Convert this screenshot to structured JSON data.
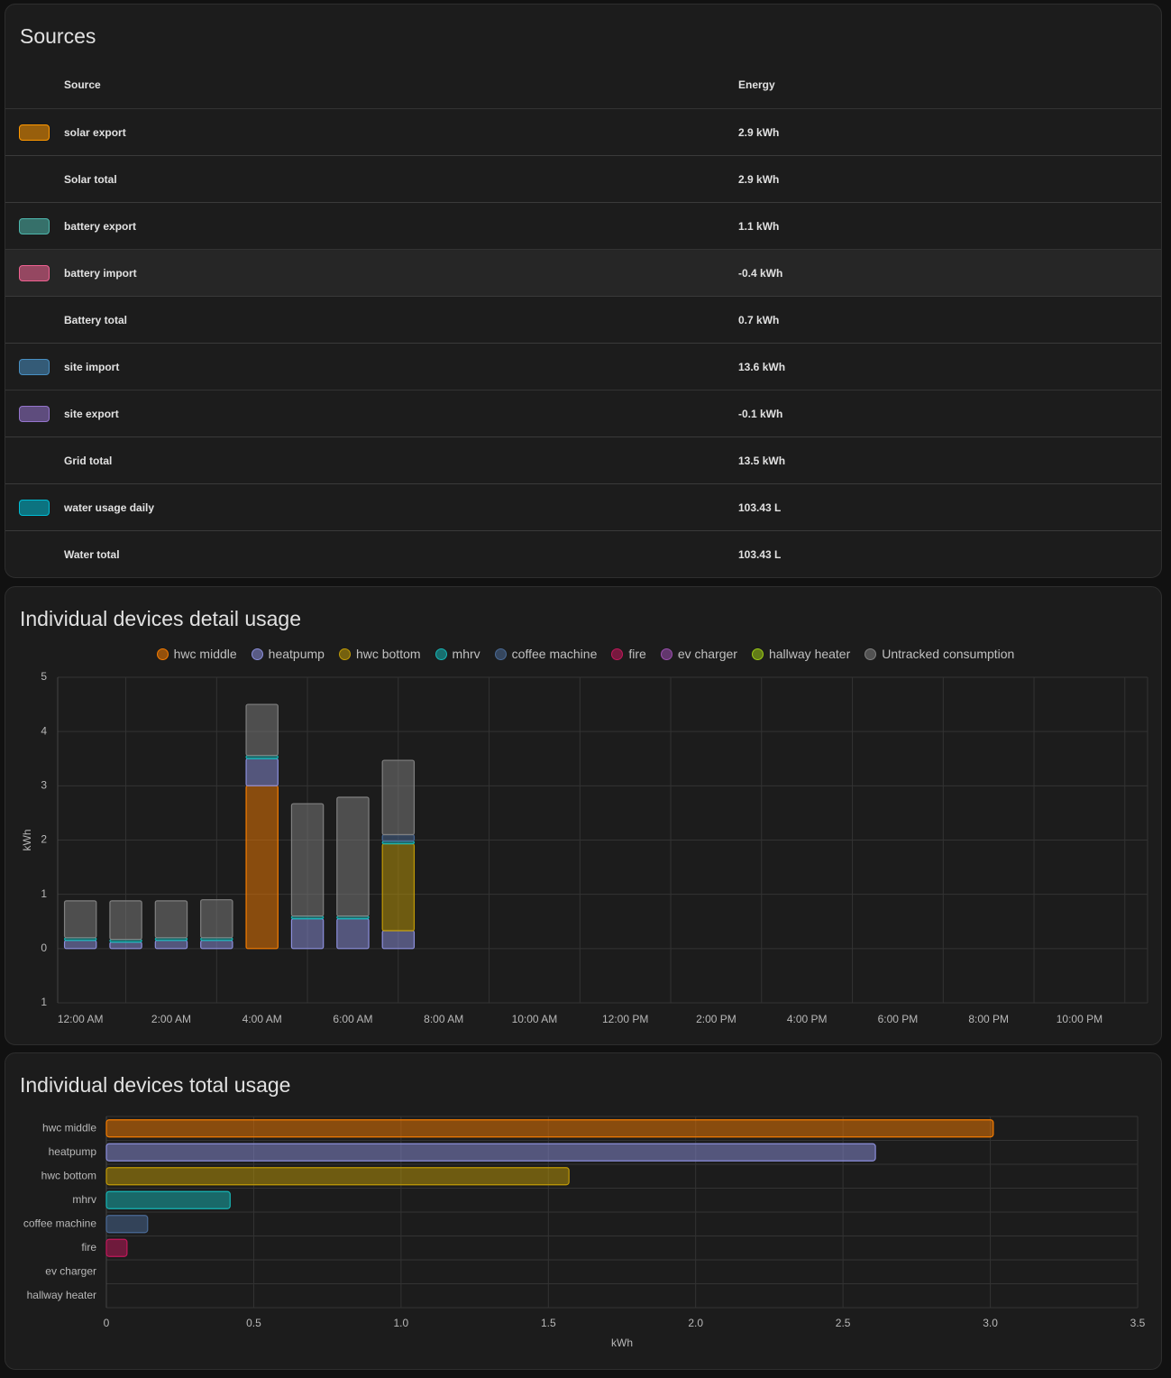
{
  "sources": {
    "title": "Sources",
    "columns": [
      "Source",
      "Energy"
    ],
    "rows": [
      {
        "source": "solar export",
        "energy": "2.9 kWh",
        "color": "#ff9800"
      },
      {
        "source": "Solar total",
        "energy": "2.9 kWh",
        "total": true
      },
      {
        "source": "battery export",
        "energy": "1.1 kWh",
        "color": "#4db6ac"
      },
      {
        "source": "battery import",
        "energy": "-0.4 kWh",
        "color": "#f06292",
        "highlighted": true
      },
      {
        "source": "Battery total",
        "energy": "0.7 kWh",
        "total": true
      },
      {
        "source": "site import",
        "energy": "13.6 kWh",
        "color": "#488fc2"
      },
      {
        "source": "site export",
        "energy": "-0.1 kWh",
        "color": "#9575cd"
      },
      {
        "source": "Grid total",
        "energy": "13.5 kWh",
        "total": true
      },
      {
        "source": "water usage daily",
        "energy": "103.43 L",
        "color": "#00bcd4"
      },
      {
        "source": "Water total",
        "energy": "103.43 L",
        "total": true
      }
    ]
  },
  "chart_data": [
    {
      "type": "bar",
      "stacked": true,
      "title": "Individual devices detail usage",
      "ylabel": "kWh",
      "categories": [
        "12:00 AM",
        null,
        "2:00 AM",
        null,
        "4:00 AM",
        null,
        "6:00 AM",
        null,
        "8:00 AM",
        null,
        "10:00 AM",
        null,
        "12:00 PM",
        null,
        "2:00 PM",
        null,
        "4:00 PM",
        null,
        "6:00 PM",
        null,
        "8:00 PM",
        null,
        "10:00 PM",
        null
      ],
      "series": [
        {
          "name": "hwc middle",
          "color": "#f57c00",
          "values": [
            null,
            null,
            null,
            null,
            3.0,
            null,
            null,
            null,
            null,
            null,
            null,
            null,
            null,
            null,
            null,
            null,
            null,
            null,
            null,
            null,
            null,
            null,
            null,
            null
          ]
        },
        {
          "name": "heatpump",
          "color": "#8c8fdc",
          "values": [
            0.15,
            0.12,
            0.15,
            0.15,
            0.5,
            0.55,
            0.55,
            0.33,
            null,
            null,
            null,
            null,
            null,
            null,
            null,
            null,
            null,
            null,
            null,
            null,
            null,
            null,
            null,
            null
          ]
        },
        {
          "name": "hwc bottom",
          "color": "#c09a06",
          "values": [
            null,
            null,
            null,
            null,
            null,
            null,
            null,
            1.6,
            null,
            null,
            null,
            null,
            null,
            null,
            null,
            null,
            null,
            null,
            null,
            null,
            null,
            null,
            null,
            null
          ]
        },
        {
          "name": "mhrv",
          "color": "#16b5b5",
          "values": [
            0.05,
            0.05,
            0.05,
            0.05,
            0.06,
            0.05,
            0.05,
            0.05,
            null,
            null,
            null,
            null,
            null,
            null,
            null,
            null,
            null,
            null,
            null,
            null,
            null,
            null,
            null,
            null
          ]
        },
        {
          "name": "coffee machine",
          "color": "#4a6a96",
          "values": [
            null,
            null,
            null,
            null,
            null,
            null,
            null,
            0.12,
            null,
            null,
            null,
            null,
            null,
            null,
            null,
            null,
            null,
            null,
            null,
            null,
            null,
            null,
            null,
            null
          ]
        },
        {
          "name": "fire",
          "color": "#c2185b",
          "values": [
            null,
            null,
            null,
            null,
            null,
            null,
            null,
            null,
            null,
            null,
            null,
            null,
            null,
            null,
            null,
            null,
            null,
            null,
            null,
            null,
            null,
            null,
            null,
            null
          ]
        },
        {
          "name": "ev charger",
          "color": "#9c4fb0",
          "values": [
            null,
            null,
            null,
            null,
            null,
            null,
            null,
            null,
            null,
            null,
            null,
            null,
            null,
            null,
            null,
            null,
            null,
            null,
            null,
            null,
            null,
            null,
            null,
            null
          ]
        },
        {
          "name": "hallway heater",
          "color": "#9ccc15",
          "values": [
            null,
            null,
            null,
            null,
            null,
            null,
            null,
            null,
            null,
            null,
            null,
            null,
            null,
            null,
            null,
            null,
            null,
            null,
            null,
            null,
            null,
            null,
            null,
            null
          ]
        },
        {
          "name": "Untracked consumption",
          "color": "#808080",
          "values": [
            0.68,
            0.71,
            0.68,
            0.7,
            0.94,
            2.07,
            2.19,
            1.37,
            null,
            null,
            null,
            null,
            null,
            null,
            null,
            null,
            null,
            null,
            null,
            null,
            null,
            null,
            null,
            null
          ]
        }
      ],
      "ylim": [
        -1,
        5
      ],
      "yticks": [
        {
          "value": -1,
          "label": "1"
        },
        0,
        1,
        2,
        3,
        4,
        5
      ],
      "grid": true,
      "legend": "top"
    },
    {
      "type": "bar",
      "orientation": "horizontal",
      "title": "Individual devices total usage",
      "xlabel": "kWh",
      "categories": [
        "hwc middle",
        "heatpump",
        "hwc bottom",
        "mhrv",
        "coffee machine",
        "fire",
        "ev charger",
        "hallway heater"
      ],
      "values": [
        3.01,
        2.61,
        1.57,
        0.42,
        0.14,
        0.07,
        0,
        0
      ],
      "colors": [
        "#f57c00",
        "#8c8fdc",
        "#c09a06",
        "#16b5b5",
        "#4a6a96",
        "#c2185b",
        "#9c4fb0",
        "#9ccc15"
      ],
      "xlim": [
        0,
        3.5
      ],
      "xticks": [
        0,
        0.5,
        {
          "value": 1,
          "label": "1.0"
        },
        1.5,
        {
          "value": 2,
          "label": "2.0"
        },
        2.5,
        {
          "value": 3,
          "label": "3.0"
        },
        3.5
      ],
      "grid": true
    }
  ]
}
